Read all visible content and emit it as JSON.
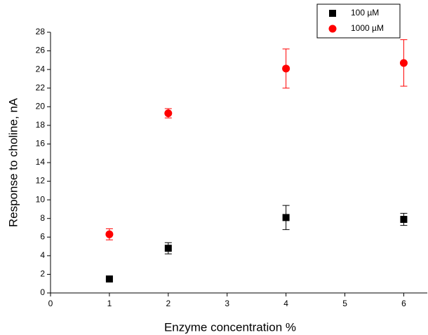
{
  "chart_data": {
    "type": "scatter",
    "x_label": "Enzyme concentration %",
    "y_label": "Response to choline, nA",
    "x": [
      1,
      2,
      4,
      6
    ],
    "series": [
      {
        "name": "100 µM",
        "color": "#000000",
        "marker": "square",
        "values": [
          1.5,
          4.8,
          8.1,
          7.9
        ],
        "errors": [
          0.1,
          0.6,
          1.3,
          0.65
        ]
      },
      {
        "name": "1000 µM",
        "color": "#ff0000",
        "marker": "circle",
        "values": [
          6.3,
          19.3,
          24.1,
          24.7
        ],
        "errors": [
          0.6,
          0.5,
          2.1,
          2.5
        ]
      }
    ],
    "xlim": [
      0,
      6.4
    ],
    "xticks": [
      0,
      1,
      2,
      3,
      4,
      5,
      6
    ],
    "ylim": [
      0,
      28
    ],
    "yticks": [
      0,
      2,
      4,
      6,
      8,
      10,
      12,
      14,
      16,
      18,
      20,
      22,
      24,
      26,
      28
    ],
    "grid": false,
    "legend": "top-right"
  }
}
